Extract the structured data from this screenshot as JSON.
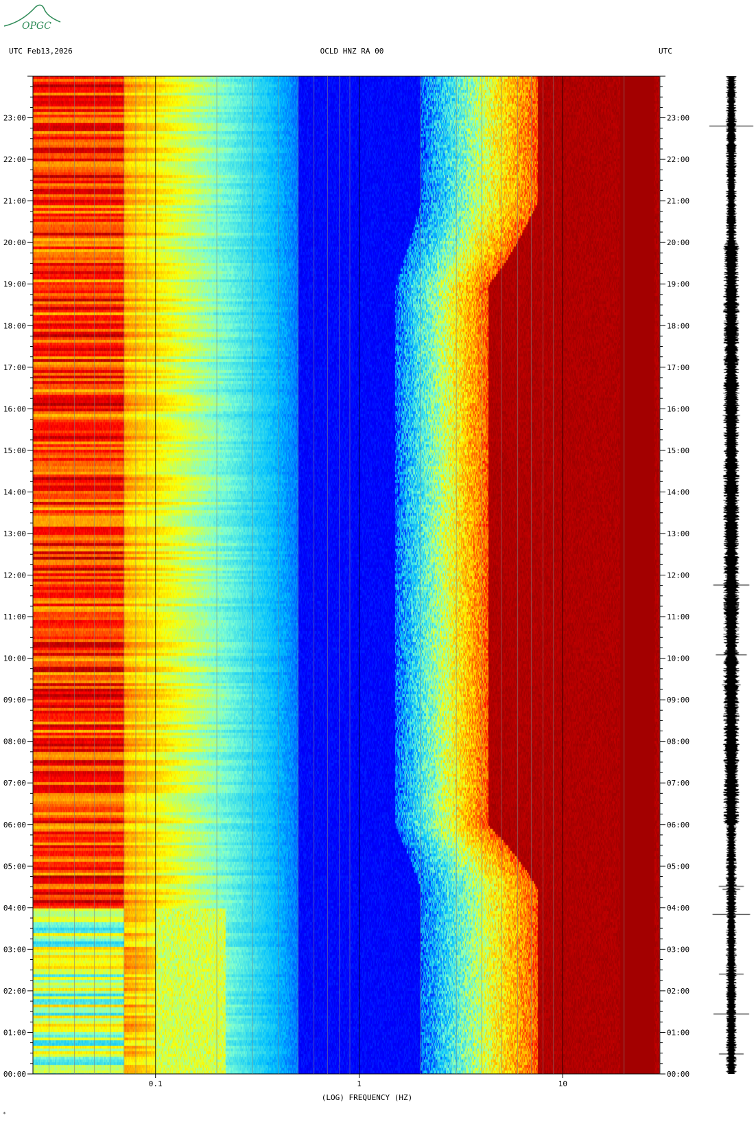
{
  "header": {
    "left": "UTC  Feb13,2026",
    "center": "OCLD HNZ RA 00",
    "right": "UTC"
  },
  "logo": {
    "text": "OPGC",
    "color": "#2e8b57"
  },
  "footer_mark": "*",
  "chart_data": {
    "type": "heatmap",
    "title": "",
    "xlabel": "(LOG) FREQUENCY (HZ)",
    "ylabel": "",
    "x_scale": "log",
    "xlim": [
      0.025,
      30
    ],
    "x_ticks": [
      {
        "value": 0.1,
        "label": "0.1"
      },
      {
        "value": 1,
        "label": "1"
      },
      {
        "value": 10,
        "label": "10"
      }
    ],
    "ylim_hours": [
      0,
      24
    ],
    "y_ticks": [
      {
        "hour": 0,
        "label": "00:00"
      },
      {
        "hour": 1,
        "label": "01:00"
      },
      {
        "hour": 2,
        "label": "02:00"
      },
      {
        "hour": 3,
        "label": "03:00"
      },
      {
        "hour": 4,
        "label": "04:00"
      },
      {
        "hour": 5,
        "label": "05:00"
      },
      {
        "hour": 6,
        "label": "06:00"
      },
      {
        "hour": 7,
        "label": "07:00"
      },
      {
        "hour": 8,
        "label": "08:00"
      },
      {
        "hour": 9,
        "label": "09:00"
      },
      {
        "hour": 10,
        "label": "10:00"
      },
      {
        "hour": 11,
        "label": "11:00"
      },
      {
        "hour": 12,
        "label": "12:00"
      },
      {
        "hour": 13,
        "label": "13:00"
      },
      {
        "hour": 14,
        "label": "14:00"
      },
      {
        "hour": 15,
        "label": "15:00"
      },
      {
        "hour": 16,
        "label": "16:00"
      },
      {
        "hour": 17,
        "label": "17:00"
      },
      {
        "hour": 18,
        "label": "18:00"
      },
      {
        "hour": 19,
        "label": "19:00"
      },
      {
        "hour": 20,
        "label": "20:00"
      },
      {
        "hour": 21,
        "label": "21:00"
      },
      {
        "hour": 22,
        "label": "22:00"
      },
      {
        "hour": 23,
        "label": "23:00"
      }
    ],
    "colormap": [
      "#00008b",
      "#0000ff",
      "#00bfff",
      "#7fffd4",
      "#ffff00",
      "#ff8c00",
      "#ff0000",
      "#8b0000"
    ],
    "grid": true,
    "side_trace": "seismogram"
  }
}
